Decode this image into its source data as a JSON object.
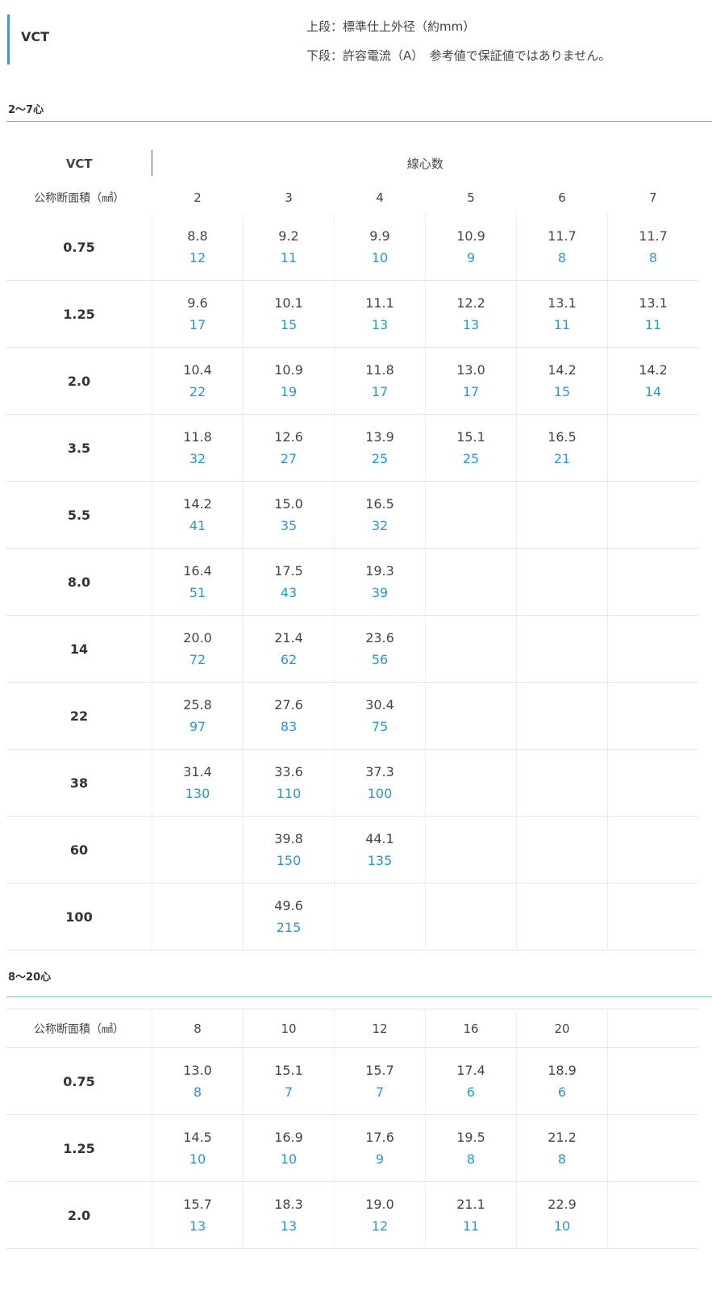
{
  "header": {
    "title": "VCT",
    "note_upper": "上段：標準仕上外径（約mm）",
    "note_lower": "下段：許容電流（A）　参考値で保証値ではありません。"
  },
  "table1": {
    "section": "2〜7心",
    "corner": "VCT",
    "group_header": "線心数",
    "row_header": "公称断面積（㎟）",
    "columns": [
      "2",
      "3",
      "4",
      "5",
      "6",
      "7"
    ],
    "rows": [
      {
        "size": "0.75",
        "cells": [
          [
            "8.8",
            "12"
          ],
          [
            "9.2",
            "11"
          ],
          [
            "9.9",
            "10"
          ],
          [
            "10.9",
            "9"
          ],
          [
            "11.7",
            "8"
          ],
          [
            "11.7",
            "8"
          ]
        ]
      },
      {
        "size": "1.25",
        "cells": [
          [
            "9.6",
            "17"
          ],
          [
            "10.1",
            "15"
          ],
          [
            "11.1",
            "13"
          ],
          [
            "12.2",
            "13"
          ],
          [
            "13.1",
            "11"
          ],
          [
            "13.1",
            "11"
          ]
        ]
      },
      {
        "size": "2.0",
        "cells": [
          [
            "10.4",
            "22"
          ],
          [
            "10.9",
            "19"
          ],
          [
            "11.8",
            "17"
          ],
          [
            "13.0",
            "17"
          ],
          [
            "14.2",
            "15"
          ],
          [
            "14.2",
            "14"
          ]
        ]
      },
      {
        "size": "3.5",
        "cells": [
          [
            "11.8",
            "32"
          ],
          [
            "12.6",
            "27"
          ],
          [
            "13.9",
            "25"
          ],
          [
            "15.1",
            "25"
          ],
          [
            "16.5",
            "21"
          ],
          [
            "",
            ""
          ]
        ]
      },
      {
        "size": "5.5",
        "cells": [
          [
            "14.2",
            "41"
          ],
          [
            "15.0",
            "35"
          ],
          [
            "16.5",
            "32"
          ],
          [
            "",
            ""
          ],
          [
            "",
            ""
          ],
          [
            "",
            ""
          ]
        ]
      },
      {
        "size": "8.0",
        "cells": [
          [
            "16.4",
            "51"
          ],
          [
            "17.5",
            "43"
          ],
          [
            "19.3",
            "39"
          ],
          [
            "",
            ""
          ],
          [
            "",
            ""
          ],
          [
            "",
            ""
          ]
        ]
      },
      {
        "size": "14",
        "cells": [
          [
            "20.0",
            "72"
          ],
          [
            "21.4",
            "62"
          ],
          [
            "23.6",
            "56"
          ],
          [
            "",
            ""
          ],
          [
            "",
            ""
          ],
          [
            "",
            ""
          ]
        ]
      },
      {
        "size": "22",
        "cells": [
          [
            "25.8",
            "97"
          ],
          [
            "27.6",
            "83"
          ],
          [
            "30.4",
            "75"
          ],
          [
            "",
            ""
          ],
          [
            "",
            ""
          ],
          [
            "",
            ""
          ]
        ]
      },
      {
        "size": "38",
        "cells": [
          [
            "31.4",
            "130"
          ],
          [
            "33.6",
            "110"
          ],
          [
            "37.3",
            "100"
          ],
          [
            "",
            ""
          ],
          [
            "",
            ""
          ],
          [
            "",
            ""
          ]
        ]
      },
      {
        "size": "60",
        "cells": [
          [
            "",
            ""
          ],
          [
            "39.8",
            "150"
          ],
          [
            "44.1",
            "135"
          ],
          [
            "",
            ""
          ],
          [
            "",
            ""
          ],
          [
            "",
            ""
          ]
        ]
      },
      {
        "size": "100",
        "cells": [
          [
            "",
            ""
          ],
          [
            "49.6",
            "215"
          ],
          [
            "",
            ""
          ],
          [
            "",
            ""
          ],
          [
            "",
            ""
          ],
          [
            "",
            ""
          ]
        ]
      }
    ]
  },
  "table2": {
    "section": "8〜20心",
    "row_header": "公称断面積（㎟）",
    "columns": [
      "8",
      "10",
      "12",
      "16",
      "20",
      ""
    ],
    "rows": [
      {
        "size": "0.75",
        "cells": [
          [
            "13.0",
            "8"
          ],
          [
            "15.1",
            "7"
          ],
          [
            "15.7",
            "7"
          ],
          [
            "17.4",
            "6"
          ],
          [
            "18.9",
            "6"
          ],
          [
            "",
            ""
          ]
        ]
      },
      {
        "size": "1.25",
        "cells": [
          [
            "14.5",
            "10"
          ],
          [
            "16.9",
            "10"
          ],
          [
            "17.6",
            "9"
          ],
          [
            "19.5",
            "8"
          ],
          [
            "21.2",
            "8"
          ],
          [
            "",
            ""
          ]
        ]
      },
      {
        "size": "2.0",
        "cells": [
          [
            "15.7",
            "13"
          ],
          [
            "18.3",
            "13"
          ],
          [
            "19.0",
            "12"
          ],
          [
            "21.1",
            "11"
          ],
          [
            "22.9",
            "10"
          ],
          [
            "",
            ""
          ]
        ]
      }
    ]
  },
  "colors": {
    "accent": "#3a9bd0",
    "current_text": "#2a97c6"
  }
}
